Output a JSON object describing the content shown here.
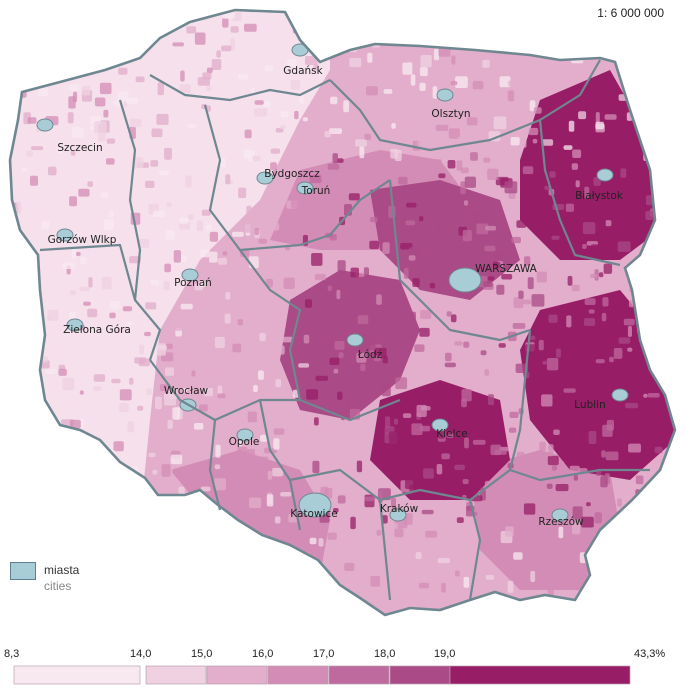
{
  "scale_text": "1: 6 000 000",
  "colors": {
    "outline": "#6f8791",
    "city": "#a9cdd6",
    "classes": [
      "#f8e9f1",
      "#efd1e1",
      "#e2aecb",
      "#d38cb5",
      "#bf6a9e",
      "#aa4a86",
      "#971d67"
    ]
  },
  "cities": [
    {
      "name": "Gdańsk",
      "label": "Gdańsk"
    },
    {
      "name": "Olsztyn",
      "label": "Olsztyn"
    },
    {
      "name": "Szczecin",
      "label": "Szczecin"
    },
    {
      "name": "Bydgoszcz",
      "label": "Bydgoszcz"
    },
    {
      "name": "Toruń",
      "label": "Toruń"
    },
    {
      "name": "Białystok",
      "label": "Białystok"
    },
    {
      "name": "Gorzów Wlkp",
      "label": "Gorzów Wlkp"
    },
    {
      "name": "Warszawa",
      "label": "WARSZAWA"
    },
    {
      "name": "Poznań",
      "label": "Poznań"
    },
    {
      "name": "Zielona Góra",
      "label": "Zielona Góra"
    },
    {
      "name": "Łódź",
      "label": "Łódź"
    },
    {
      "name": "Wrocław",
      "label": "Wrocław"
    },
    {
      "name": "Lublin",
      "label": "Lublin"
    },
    {
      "name": "Opole",
      "label": "Opole"
    },
    {
      "name": "Kielce",
      "label": "Kielce"
    },
    {
      "name": "Katowice",
      "label": "Katowice"
    },
    {
      "name": "Kraków",
      "label": "Kraków"
    },
    {
      "name": "Rzeszów",
      "label": "Rzeszów"
    }
  ],
  "legend": {
    "cities_pl": "miasta",
    "cities_en": "cities",
    "min_label": "8,3",
    "max_label": "43,3%",
    "breaks": [
      "14,0",
      "15,0",
      "16,0",
      "17,0",
      "18,0",
      "19,0"
    ]
  }
}
